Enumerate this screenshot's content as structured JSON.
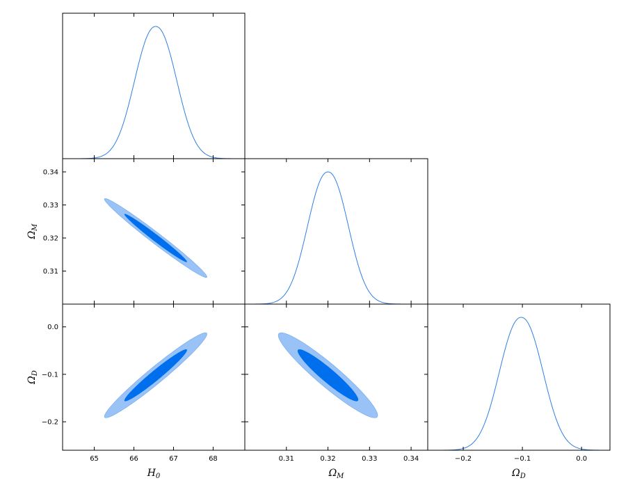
{
  "chart_data": {
    "type": "corner",
    "colors": {
      "line": "#2f7fe0",
      "contour_1sigma": "#006fed",
      "contour_2sigma": "#99c2f6",
      "contour_edge": "#6fa8f0"
    },
    "parameters": [
      {
        "key": "H0",
        "label_base": "H",
        "label_sub": "0",
        "range": [
          64.2,
          68.8
        ],
        "ticks": [
          65,
          66,
          67,
          68
        ],
        "tick_labels": [
          "65",
          "66",
          "67",
          "68"
        ],
        "mean": 66.55,
        "sigma": 0.52
      },
      {
        "key": "OmegaM",
        "label_base": "Ω",
        "label_sub": "M",
        "range": [
          0.3,
          0.344
        ],
        "ticks": [
          0.31,
          0.32,
          0.33,
          0.34
        ],
        "tick_labels": [
          "0.31",
          "0.32",
          "0.33",
          "0.34"
        ],
        "mean": 0.32,
        "sigma": 0.0048
      },
      {
        "key": "OmegaD",
        "label_base": "Ω",
        "label_sub": "D",
        "range": [
          -0.26,
          0.048
        ],
        "ticks": [
          -0.2,
          -0.1,
          0.0
        ],
        "tick_labels": [
          "−0.2",
          "−0.1",
          "0.0"
        ],
        "mean": -0.102,
        "sigma": 0.036
      }
    ],
    "correlations": {
      "OmegaM_H0": -0.985,
      "OmegaD_H0": 0.97,
      "OmegaD_OmegaM": -0.94
    },
    "y_tick_labels_left": {
      "OmegaM": [
        "0.31",
        "0.32",
        "0.33",
        "0.34"
      ],
      "OmegaD": [
        "−0.2",
        "−0.1",
        "0.0"
      ]
    }
  }
}
